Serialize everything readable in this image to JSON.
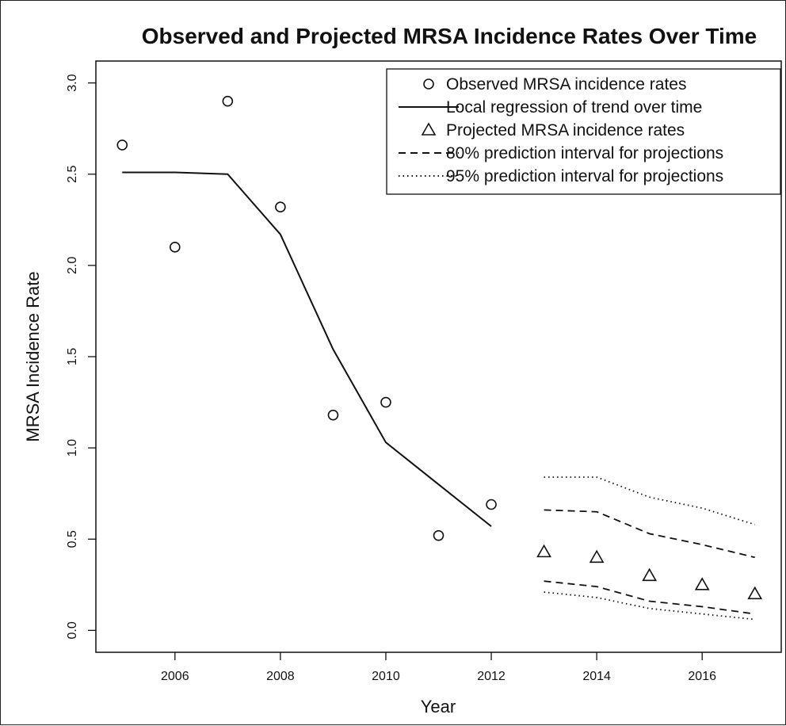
{
  "chart_data": {
    "type": "line",
    "title": "Observed and Projected MRSA Incidence Rates Over Time",
    "xlabel": "Year",
    "ylabel": "MRSA Incidence Rate",
    "xlim": [
      2004.5,
      2017.5
    ],
    "ylim": [
      -0.12,
      3.12
    ],
    "x_ticks": [
      2006,
      2008,
      2010,
      2012,
      2014,
      2016
    ],
    "x_tick_labels": [
      "2006",
      "2008",
      "2010",
      "2012",
      "2014",
      "2016"
    ],
    "y_ticks": [
      0.0,
      0.5,
      1.0,
      1.5,
      2.0,
      2.5,
      3.0
    ],
    "y_tick_labels": [
      "0.0",
      "0.5",
      "1.0",
      "1.5",
      "2.0",
      "2.5",
      "3.0"
    ],
    "grid": false,
    "legend_position": "top-right",
    "series": [
      {
        "name": "Observed MRSA incidence rates",
        "marker": "circle",
        "x": [
          2005,
          2006,
          2007,
          2008,
          2009,
          2010,
          2011,
          2012
        ],
        "y": [
          2.66,
          2.1,
          2.9,
          2.32,
          1.18,
          1.25,
          0.52,
          0.69
        ]
      },
      {
        "name": "Local regression of trend over time",
        "line": "solid",
        "x": [
          2005,
          2006,
          2007,
          2008,
          2009,
          2010,
          2011,
          2012
        ],
        "y": [
          2.51,
          2.51,
          2.5,
          2.17,
          1.54,
          1.03,
          0.8,
          0.57
        ]
      },
      {
        "name": "Projected MRSA incidence rates",
        "marker": "triangle",
        "x": [
          2013,
          2014,
          2015,
          2016,
          2017
        ],
        "y": [
          0.43,
          0.4,
          0.3,
          0.25,
          0.2
        ]
      },
      {
        "name": "80% prediction interval for projections",
        "line": "dashed",
        "x": [
          2013,
          2014,
          2015,
          2016,
          2017
        ],
        "upper": [
          0.66,
          0.65,
          0.53,
          0.47,
          0.4
        ],
        "lower": [
          0.27,
          0.24,
          0.16,
          0.13,
          0.09
        ]
      },
      {
        "name": "95% prediction interval for projections",
        "line": "dotted",
        "x": [
          2013,
          2014,
          2015,
          2016,
          2017
        ],
        "upper": [
          0.84,
          0.84,
          0.73,
          0.67,
          0.58
        ],
        "lower": [
          0.21,
          0.18,
          0.12,
          0.09,
          0.06
        ]
      }
    ]
  }
}
